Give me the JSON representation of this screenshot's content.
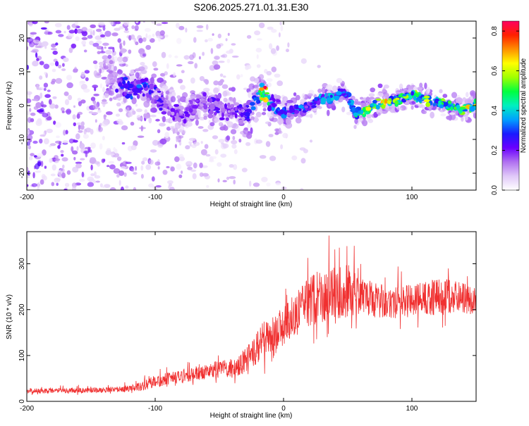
{
  "figure_title": "S206.2025.271.01.31.E30",
  "chart_data": [
    {
      "type": "heatmap",
      "title": "S206.2025.271.01.31.E30",
      "xlabel": "Height of straight line (km)",
      "ylabel": "Frequency (Hz)",
      "xlim": [
        -200,
        150
      ],
      "ylim": [
        -25,
        25
      ],
      "xticks": [
        -200,
        -100,
        0,
        100
      ],
      "yticks": [
        -20,
        -10,
        0,
        10,
        20
      ],
      "colorbar": {
        "label": "Normalized spectral amplitude",
        "range": [
          0.0,
          0.85
        ],
        "ticks": [
          0.0,
          0.2,
          0.4,
          0.6,
          0.8
        ],
        "colormap": [
          "#ffffff",
          "#e0c8f8",
          "#b070f0",
          "#6a00ff",
          "#1a1aff",
          "#00a0ff",
          "#00f0c0",
          "#00ff40",
          "#a0ff00",
          "#ffff00",
          "#ff9000",
          "#ff2000",
          "#ff0060"
        ]
      },
      "ridge": {
        "x": [
          -140,
          -120,
          -110,
          -100,
          -90,
          -80,
          -70,
          -60,
          -50,
          -40,
          -30,
          -20,
          -15,
          -10,
          0,
          10,
          20,
          30,
          40,
          45,
          50,
          55,
          60,
          70,
          80,
          90,
          100,
          110,
          120,
          130,
          140,
          150
        ],
        "freq": [
          8,
          5,
          6,
          3,
          -1,
          -3,
          0,
          1,
          -1,
          -2,
          -3,
          3,
          4,
          1,
          -2,
          -1,
          0,
          2,
          3,
          4,
          3,
          -2,
          -2,
          0,
          1,
          2,
          3,
          2,
          1,
          0,
          -1,
          0
        ],
        "amplitude": [
          0.2,
          0.28,
          0.3,
          0.25,
          0.2,
          0.2,
          0.18,
          0.2,
          0.22,
          0.2,
          0.22,
          0.35,
          0.75,
          0.3,
          0.3,
          0.32,
          0.3,
          0.32,
          0.35,
          0.28,
          0.3,
          0.45,
          0.55,
          0.5,
          0.6,
          0.5,
          0.5,
          0.55,
          0.5,
          0.5,
          0.6,
          0.55
        ]
      }
    },
    {
      "type": "line",
      "xlabel": "Height of straight line (km)",
      "ylabel": "SNR (10 * v/v)",
      "xlim": [
        -200,
        150
      ],
      "ylim": [
        0,
        370
      ],
      "xticks": [
        -200,
        -100,
        0,
        100
      ],
      "yticks": [
        0,
        100,
        200,
        300
      ],
      "series": [
        {
          "name": "SNR",
          "color": "#f03030",
          "x": [
            -200,
            -180,
            -160,
            -140,
            -120,
            -110,
            -100,
            -90,
            -80,
            -70,
            -60,
            -50,
            -40,
            -35,
            -30,
            -25,
            -20,
            -15,
            -10,
            -5,
            0,
            5,
            10,
            20,
            30,
            40,
            50,
            60,
            70,
            80,
            90,
            100,
            110,
            120,
            130,
            140,
            150
          ],
          "mean": [
            20,
            22,
            22,
            23,
            26,
            30,
            40,
            45,
            50,
            55,
            60,
            65,
            65,
            70,
            80,
            90,
            110,
            120,
            125,
            135,
            150,
            165,
            180,
            200,
            215,
            220,
            225,
            220,
            210,
            205,
            205,
            210,
            215,
            215,
            215,
            215,
            215
          ],
          "spread": [
            10,
            10,
            10,
            10,
            12,
            18,
            25,
            25,
            25,
            28,
            30,
            35,
            40,
            45,
            50,
            55,
            70,
            80,
            80,
            80,
            80,
            90,
            90,
            100,
            110,
            110,
            110,
            80,
            70,
            65,
            65,
            65,
            70,
            70,
            70,
            60,
            50
          ]
        }
      ]
    }
  ]
}
